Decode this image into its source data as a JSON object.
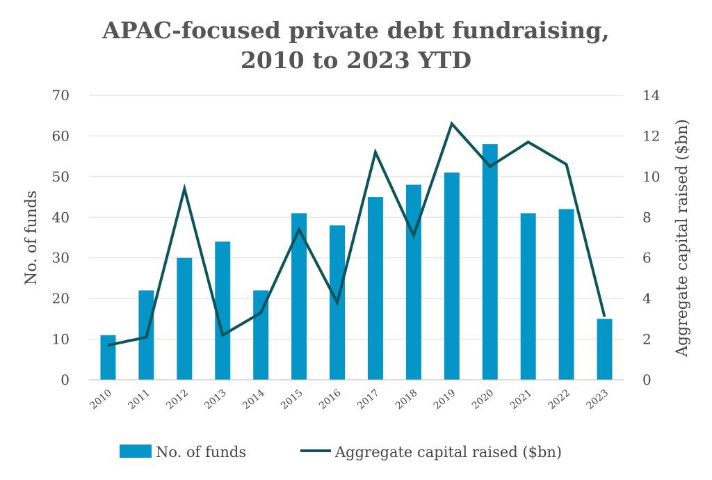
{
  "chart_data": {
    "type": "bar",
    "title": [
      "APAC-focused private debt fundraising,",
      "2010 to 2023 YTD"
    ],
    "categories": [
      "2010",
      "2011",
      "2012",
      "2013",
      "2014",
      "2015",
      "2016",
      "2017",
      "2018",
      "2019",
      "2020",
      "2021",
      "2022",
      "2023"
    ],
    "series": [
      {
        "name": "No. of funds",
        "type": "bar",
        "axis": "left",
        "color": "#0596c7",
        "values": [
          11,
          22,
          30,
          34,
          22,
          41,
          38,
          45,
          48,
          51,
          58,
          41,
          42,
          15
        ]
      },
      {
        "name": "Aggregate capital raised ($bn)",
        "type": "line",
        "axis": "right",
        "color": "#0c5459",
        "values": [
          1.7,
          2.1,
          9.4,
          2.2,
          3.3,
          7.4,
          3.8,
          11.2,
          7.1,
          12.6,
          10.5,
          11.7,
          10.6,
          3.1
        ]
      }
    ],
    "ylabel": "No. of funds",
    "y2label": "Aggregate capital raised ($bn)",
    "ylim": [
      0,
      70
    ],
    "y_ticks": [
      0,
      10,
      20,
      30,
      40,
      50,
      60,
      70
    ],
    "y2lim": [
      0,
      14
    ],
    "y2_ticks": [
      0,
      2,
      4,
      6,
      8,
      10,
      12,
      14
    ],
    "grid": true,
    "legend_position": "bottom"
  }
}
